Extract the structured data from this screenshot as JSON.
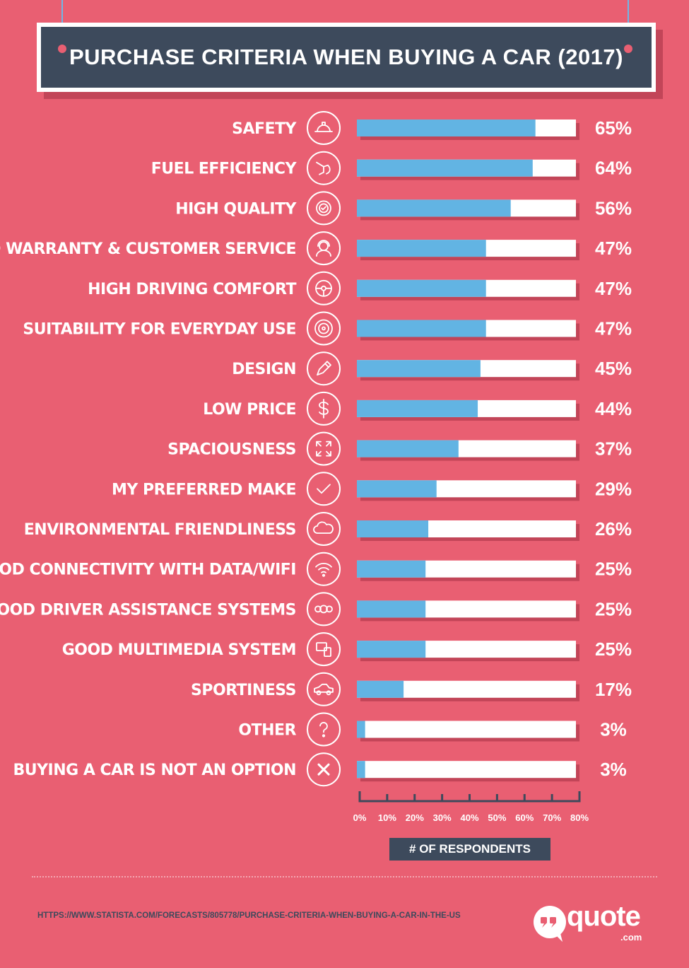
{
  "title": "PURCHASE CRITERIA WHEN BUYING A CAR (2017)",
  "x_axis_label": "# OF RESPONDENTS",
  "source": "HTTPS://WWW.STATISTA.COM/FORECASTS/805778/PURCHASE-CRITERIA-WHEN-BUYING-A-CAR-IN-THE-US",
  "logo": {
    "text": "quote",
    "suffix": ".com"
  },
  "colors": {
    "background": "#e95f72",
    "bar": "#62b4e3",
    "track": "#ffffff",
    "shadow": "#c24558",
    "dark": "#3d4a5c"
  },
  "chart_data": {
    "type": "bar",
    "orientation": "horizontal",
    "title": "PURCHASE CRITERIA WHEN BUYING A CAR (2017)",
    "xlabel": "# OF RESPONDENTS",
    "ylabel": "",
    "xlim": [
      0,
      80
    ],
    "ticks": [
      "0%",
      "10%",
      "20%",
      "30%",
      "40%",
      "50%",
      "60%",
      "70%",
      "80%"
    ],
    "categories": [
      "SAFETY",
      "FUEL EFFICIENCY",
      "HIGH QUALITY",
      "GOOD WARRANTY & CUSTOMER SERVICE",
      "HIGH DRIVING COMFORT",
      "SUITABILITY FOR EVERYDAY USE",
      "DESIGN",
      "LOW PRICE",
      "SPACIOUSNESS",
      "MY PREFERRED MAKE",
      "ENVIRONMENTAL FRIENDLINESS",
      "GOOD CONNECTIVITY WITH DATA/WIFI",
      "GOOD DRIVER ASSISTANCE SYSTEMS",
      "GOOD MULTIMEDIA SYSTEM",
      "SPORTINESS",
      "OTHER",
      "BUYING A CAR IS NOT AN OPTION"
    ],
    "values": [
      65,
      64,
      56,
      47,
      47,
      47,
      45,
      44,
      37,
      29,
      26,
      25,
      25,
      25,
      17,
      3,
      3
    ],
    "value_labels": [
      "65%",
      "64%",
      "56%",
      "47%",
      "47%",
      "47%",
      "45%",
      "44%",
      "37%",
      "29%",
      "26%",
      "25%",
      "25%",
      "25%",
      "17%",
      "3%",
      "3%"
    ],
    "icons": [
      "hard-hat-icon",
      "fuel-nozzle-icon",
      "quality-badge-icon",
      "customer-service-icon",
      "steering-wheel-icon",
      "tire-icon",
      "pencil-icon",
      "dollar-icon",
      "expand-icon",
      "checkmark-icon",
      "cloud-icon",
      "wifi-icon",
      "sensors-icon",
      "multimedia-icon",
      "convertible-car-icon",
      "question-icon",
      "cross-icon"
    ],
    "grid": false,
    "legend": "none"
  }
}
